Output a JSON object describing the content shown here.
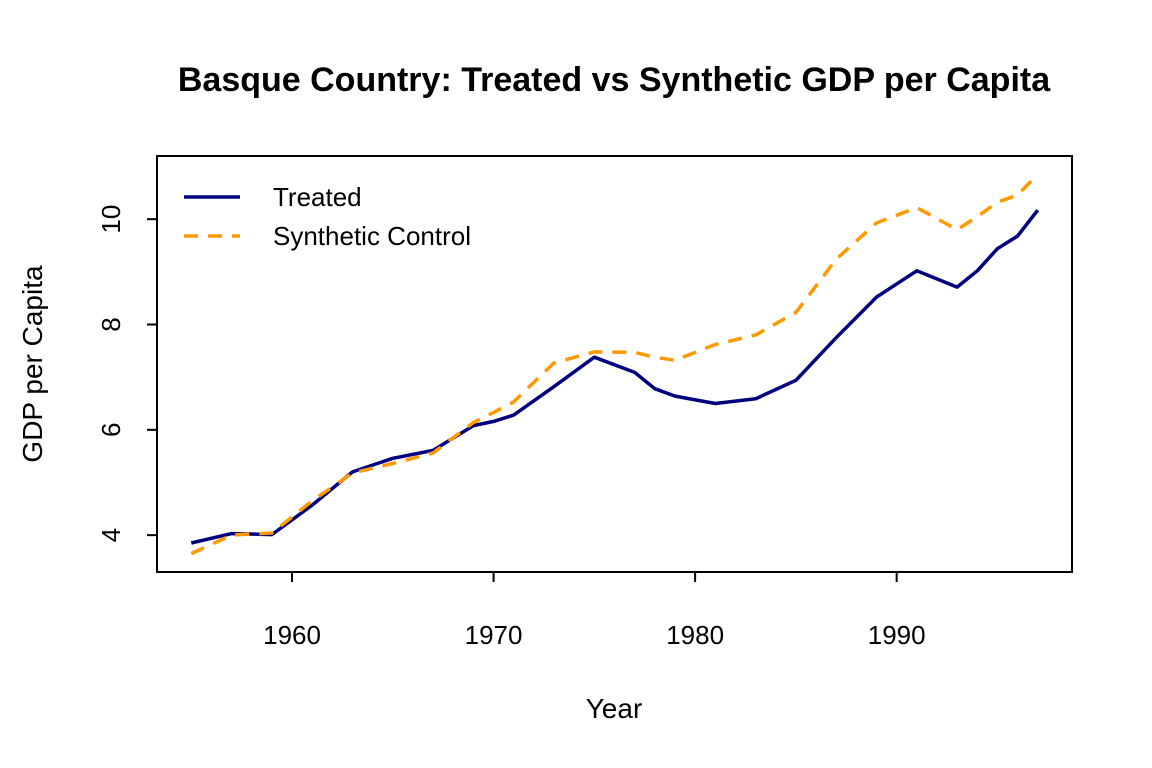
{
  "chart_data": {
    "type": "line",
    "title": "Basque Country: Treated vs Synthetic GDP per Capita",
    "xlabel": "Year",
    "ylabel": "GDP per Capita",
    "xlim": [
      1953.3,
      1998.7
    ],
    "ylim": [
      3.3,
      11.2
    ],
    "x_ticks": [
      1960,
      1970,
      1980,
      1990
    ],
    "y_ticks": [
      4,
      6,
      8,
      10
    ],
    "grid": false,
    "legend_position": "top-left",
    "x": [
      1955,
      1957,
      1959,
      1961,
      1963,
      1965,
      1967,
      1969,
      1970,
      1971,
      1973,
      1975,
      1977,
      1978,
      1979,
      1981,
      1983,
      1985,
      1987,
      1989,
      1991,
      1993,
      1994,
      1995,
      1996,
      1997
    ],
    "series": [
      {
        "name": "Treated",
        "color": "#000080",
        "style": "solid",
        "values": [
          3.85,
          4.03,
          4.01,
          4.57,
          5.2,
          5.46,
          5.61,
          6.08,
          6.16,
          6.28,
          6.82,
          7.38,
          7.09,
          6.78,
          6.64,
          6.5,
          6.59,
          6.94,
          7.75,
          8.52,
          9.02,
          8.71,
          9.02,
          9.44,
          9.68,
          10.17
        ]
      },
      {
        "name": "Synthetic Control",
        "color": "#FF9900",
        "style": "dashed",
        "values": [
          3.65,
          4.0,
          4.04,
          4.65,
          5.18,
          5.36,
          5.56,
          6.14,
          6.33,
          6.53,
          7.27,
          7.48,
          7.47,
          7.38,
          7.32,
          7.62,
          7.8,
          8.23,
          9.24,
          9.93,
          10.22,
          9.8,
          10.05,
          10.32,
          10.46,
          10.85
        ]
      }
    ]
  }
}
